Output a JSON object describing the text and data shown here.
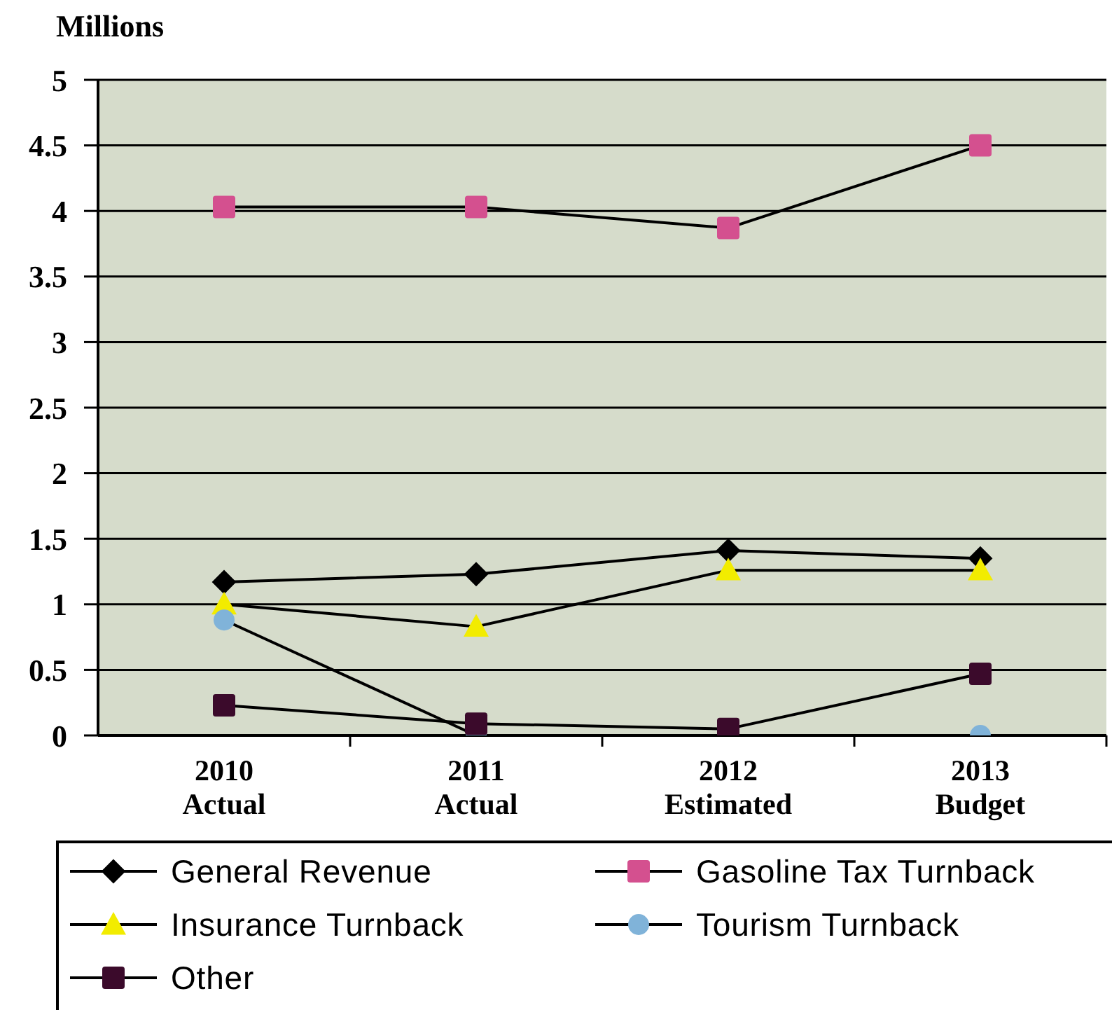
{
  "chart_data": {
    "type": "line",
    "ylabel": "Millions",
    "categories": [
      "2010 Actual",
      "2011 Actual",
      "2012 Estimated",
      "2013 Budget"
    ],
    "series": [
      {
        "name": "General Revenue",
        "color": "#000000",
        "marker": "diamond",
        "values": [
          1.17,
          1.23,
          1.41,
          1.35
        ]
      },
      {
        "name": "Gasoline Tax Turnback",
        "color": "#d4508f",
        "marker": "square",
        "values": [
          4.03,
          4.03,
          3.87,
          4.5
        ]
      },
      {
        "name": "Insurance Turnback",
        "color": "#f2ec00",
        "marker": "triangle",
        "values": [
          1.0,
          0.83,
          1.26,
          1.26
        ]
      },
      {
        "name": "Tourism Turnback",
        "color": "#80b3d9",
        "marker": "circle",
        "values": [
          0.88,
          0,
          null,
          0
        ]
      },
      {
        "name": "Other",
        "color": "#3b0a2b",
        "marker": "square",
        "values": [
          0.23,
          0.09,
          0.05,
          0.47
        ]
      }
    ],
    "ylim": [
      0,
      5
    ],
    "yticks": [
      0,
      0.5,
      1,
      1.5,
      2,
      2.5,
      3,
      3.5,
      4,
      4.5,
      5
    ],
    "grid": "y",
    "legend": "bottom"
  }
}
